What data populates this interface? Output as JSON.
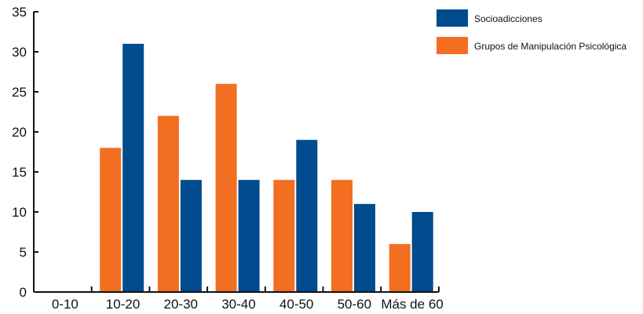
{
  "chart_data": {
    "type": "bar",
    "categories": [
      "0-10",
      "10-20",
      "20-30",
      "30-40",
      "40-50",
      "50-60",
      "Más de 60"
    ],
    "series": [
      {
        "name": "Grupos de Manipulación Psicológica",
        "color": "#F26F21",
        "values": [
          0,
          18,
          22,
          26,
          14,
          14,
          6
        ]
      },
      {
        "name": "Socioadicciones",
        "color": "#004B8D",
        "values": [
          0,
          31,
          14,
          14,
          19,
          11,
          10
        ]
      }
    ],
    "y_ticks": [
      "0",
      "5",
      "10",
      "15",
      "20",
      "25",
      "30",
      "35"
    ],
    "ylim": [
      0,
      35
    ],
    "grid": false,
    "legend_position": "top-right",
    "legend_order": [
      1,
      0
    ],
    "title": "",
    "xlabel": "",
    "ylabel": ""
  }
}
